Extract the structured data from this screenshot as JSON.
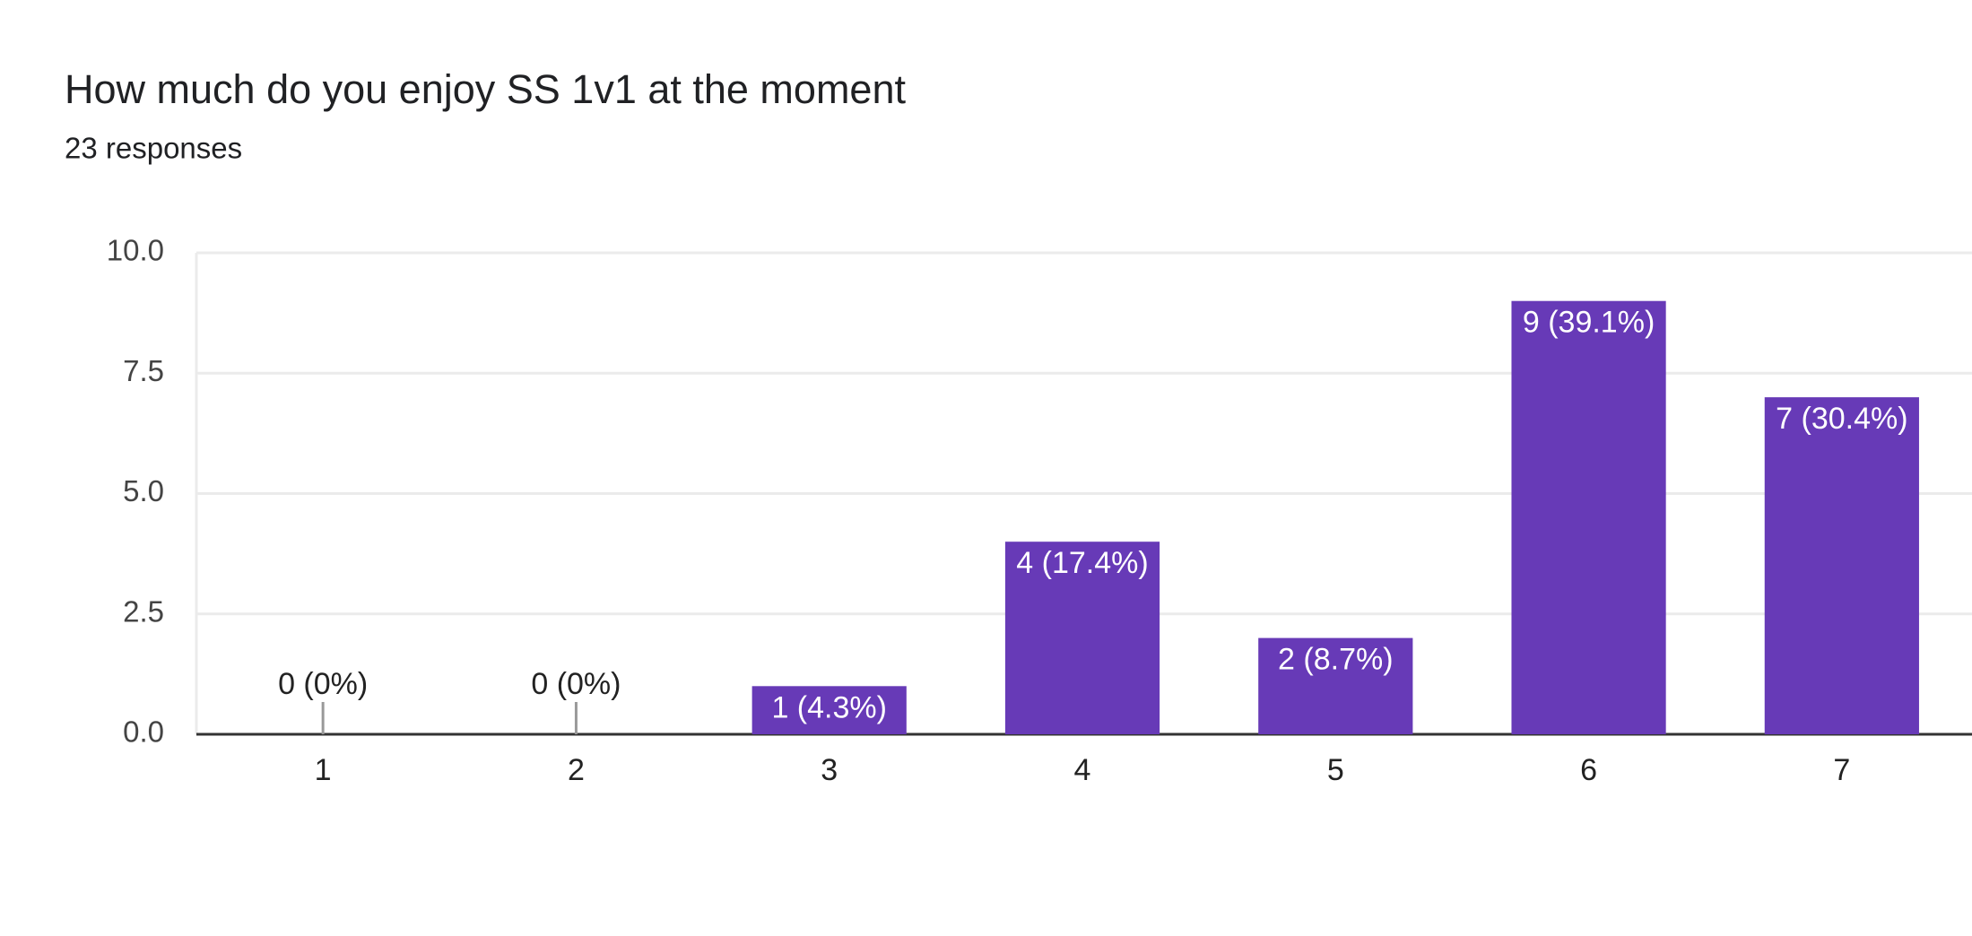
{
  "chart_data": {
    "type": "bar",
    "title": "How much do you enjoy SS 1v1 at the moment",
    "subtitle": "23 responses",
    "categories": [
      "1",
      "2",
      "3",
      "4",
      "5",
      "6",
      "7"
    ],
    "values": [
      0,
      0,
      1,
      4,
      2,
      9,
      7
    ],
    "value_labels": [
      "0 (0%)",
      "0 (0%)",
      "1 (4.3%)",
      "4 (17.4%)",
      "2 (8.7%)",
      "9 (39.1%)",
      "7 (30.4%)"
    ],
    "color": "#673ab7",
    "ylim": [
      0,
      10
    ],
    "yticks": [
      {
        "value": 0,
        "label": "0.0"
      },
      2.5,
      {
        "value": 5,
        "label": "5.0"
      },
      7.5,
      {
        "value": 10,
        "label": "10.0"
      }
    ],
    "grid": true
  }
}
